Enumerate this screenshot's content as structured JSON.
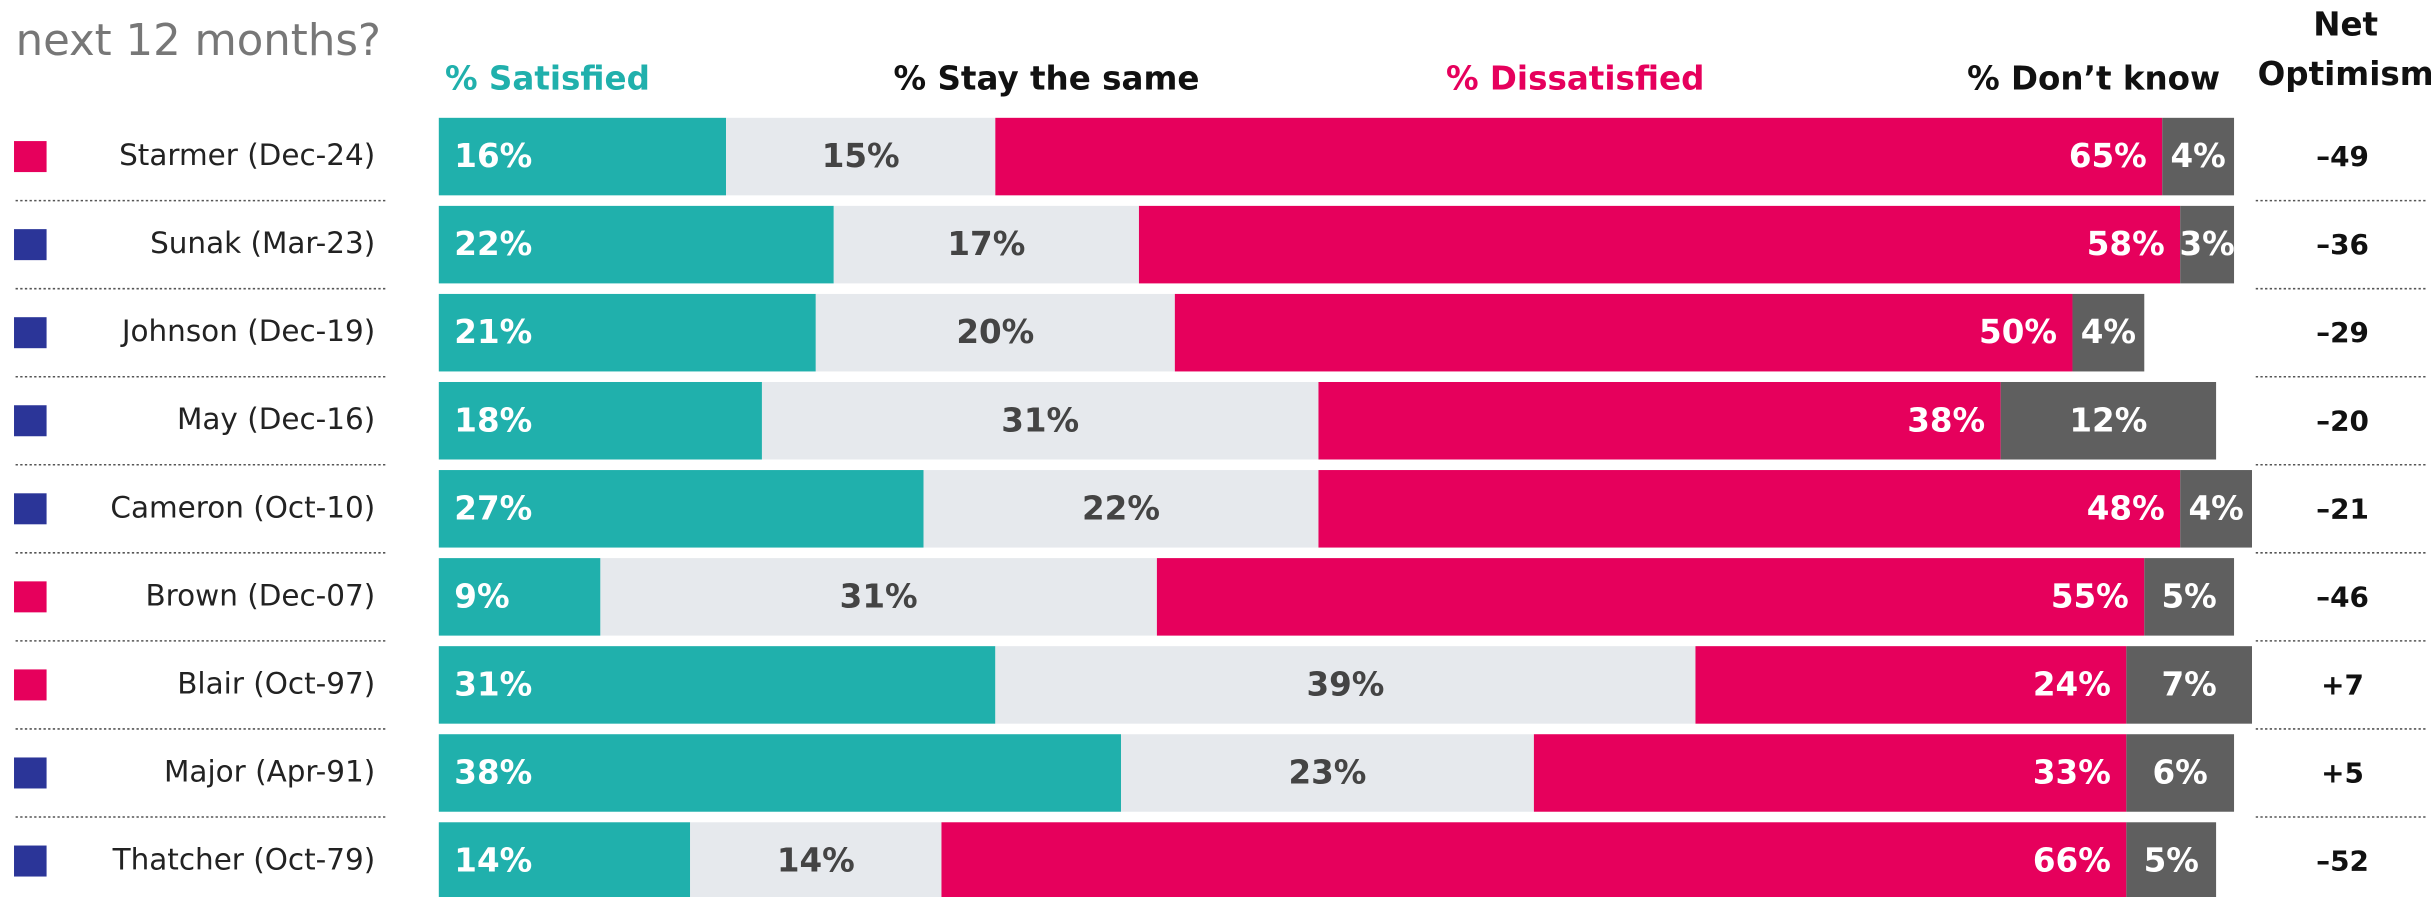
{
  "chart_data": {
    "type": "stacked_barh",
    "title": "next 12 months?",
    "categories": [
      "Starmer (Dec-24)",
      "Sunak (Mar-23)",
      "Johnson (Dec-19)",
      "May (Dec-16)",
      "Cameron (Oct-10)",
      "Brown (Dec-07)",
      "Blair (Oct-97)",
      "Major (Apr-91)",
      "Thatcher (Oct-79)"
    ],
    "marker_colors": [
      "#e6005c",
      "#2b3598",
      "#2b3598",
      "#2b3598",
      "#2b3598",
      "#e6005c",
      "#e6005c",
      "#2b3598",
      "#2b3598"
    ],
    "xlim": [
      0,
      100
    ],
    "series": [
      {
        "name": "% Satisfied",
        "color": "#20b0ac",
        "label_color": "#ffffff",
        "values": [
          16,
          22,
          21,
          18,
          27,
          9,
          31,
          38,
          14
        ],
        "value_labels": [
          "16%",
          "22%",
          "21%",
          "18%",
          "27%",
          "9%",
          "31%",
          "38%",
          "14%"
        ]
      },
      {
        "name": "% Stay the same",
        "color": "#e6e9ed",
        "label_color": "#444444",
        "values": [
          15,
          17,
          20,
          31,
          22,
          31,
          39,
          23,
          14
        ],
        "value_labels": [
          "15%",
          "17%",
          "20%",
          "31%",
          "22%",
          "31%",
          "39%",
          "23%",
          "14%"
        ]
      },
      {
        "name": "% Dissatisfied",
        "color": "#e6005c",
        "label_color": "#ffffff",
        "values": [
          65,
          58,
          50,
          38,
          48,
          55,
          24,
          33,
          66
        ],
        "value_labels": [
          "65%",
          "58%",
          "50%",
          "38%",
          "48%",
          "55%",
          "24%",
          "33%",
          "66%"
        ]
      },
      {
        "name": "% Don’t know",
        "color": "#5f5f5f",
        "label_color": "#ffffff",
        "values": [
          4,
          3,
          4,
          12,
          4,
          5,
          7,
          6,
          5
        ],
        "value_labels": [
          "4%",
          "3%",
          "4%",
          "12%",
          "4%",
          "5%",
          "7%",
          "6%",
          "5%"
        ]
      }
    ],
    "net": {
      "name": [
        "Net",
        "Optimism"
      ],
      "values": [
        -49,
        -36,
        -29,
        -20,
        -21,
        -46,
        7,
        5,
        -52
      ],
      "value_labels": [
        "–49",
        "–36",
        "–29",
        "–20",
        "–21",
        "–46",
        "+7",
        "+5",
        "–52"
      ]
    }
  }
}
